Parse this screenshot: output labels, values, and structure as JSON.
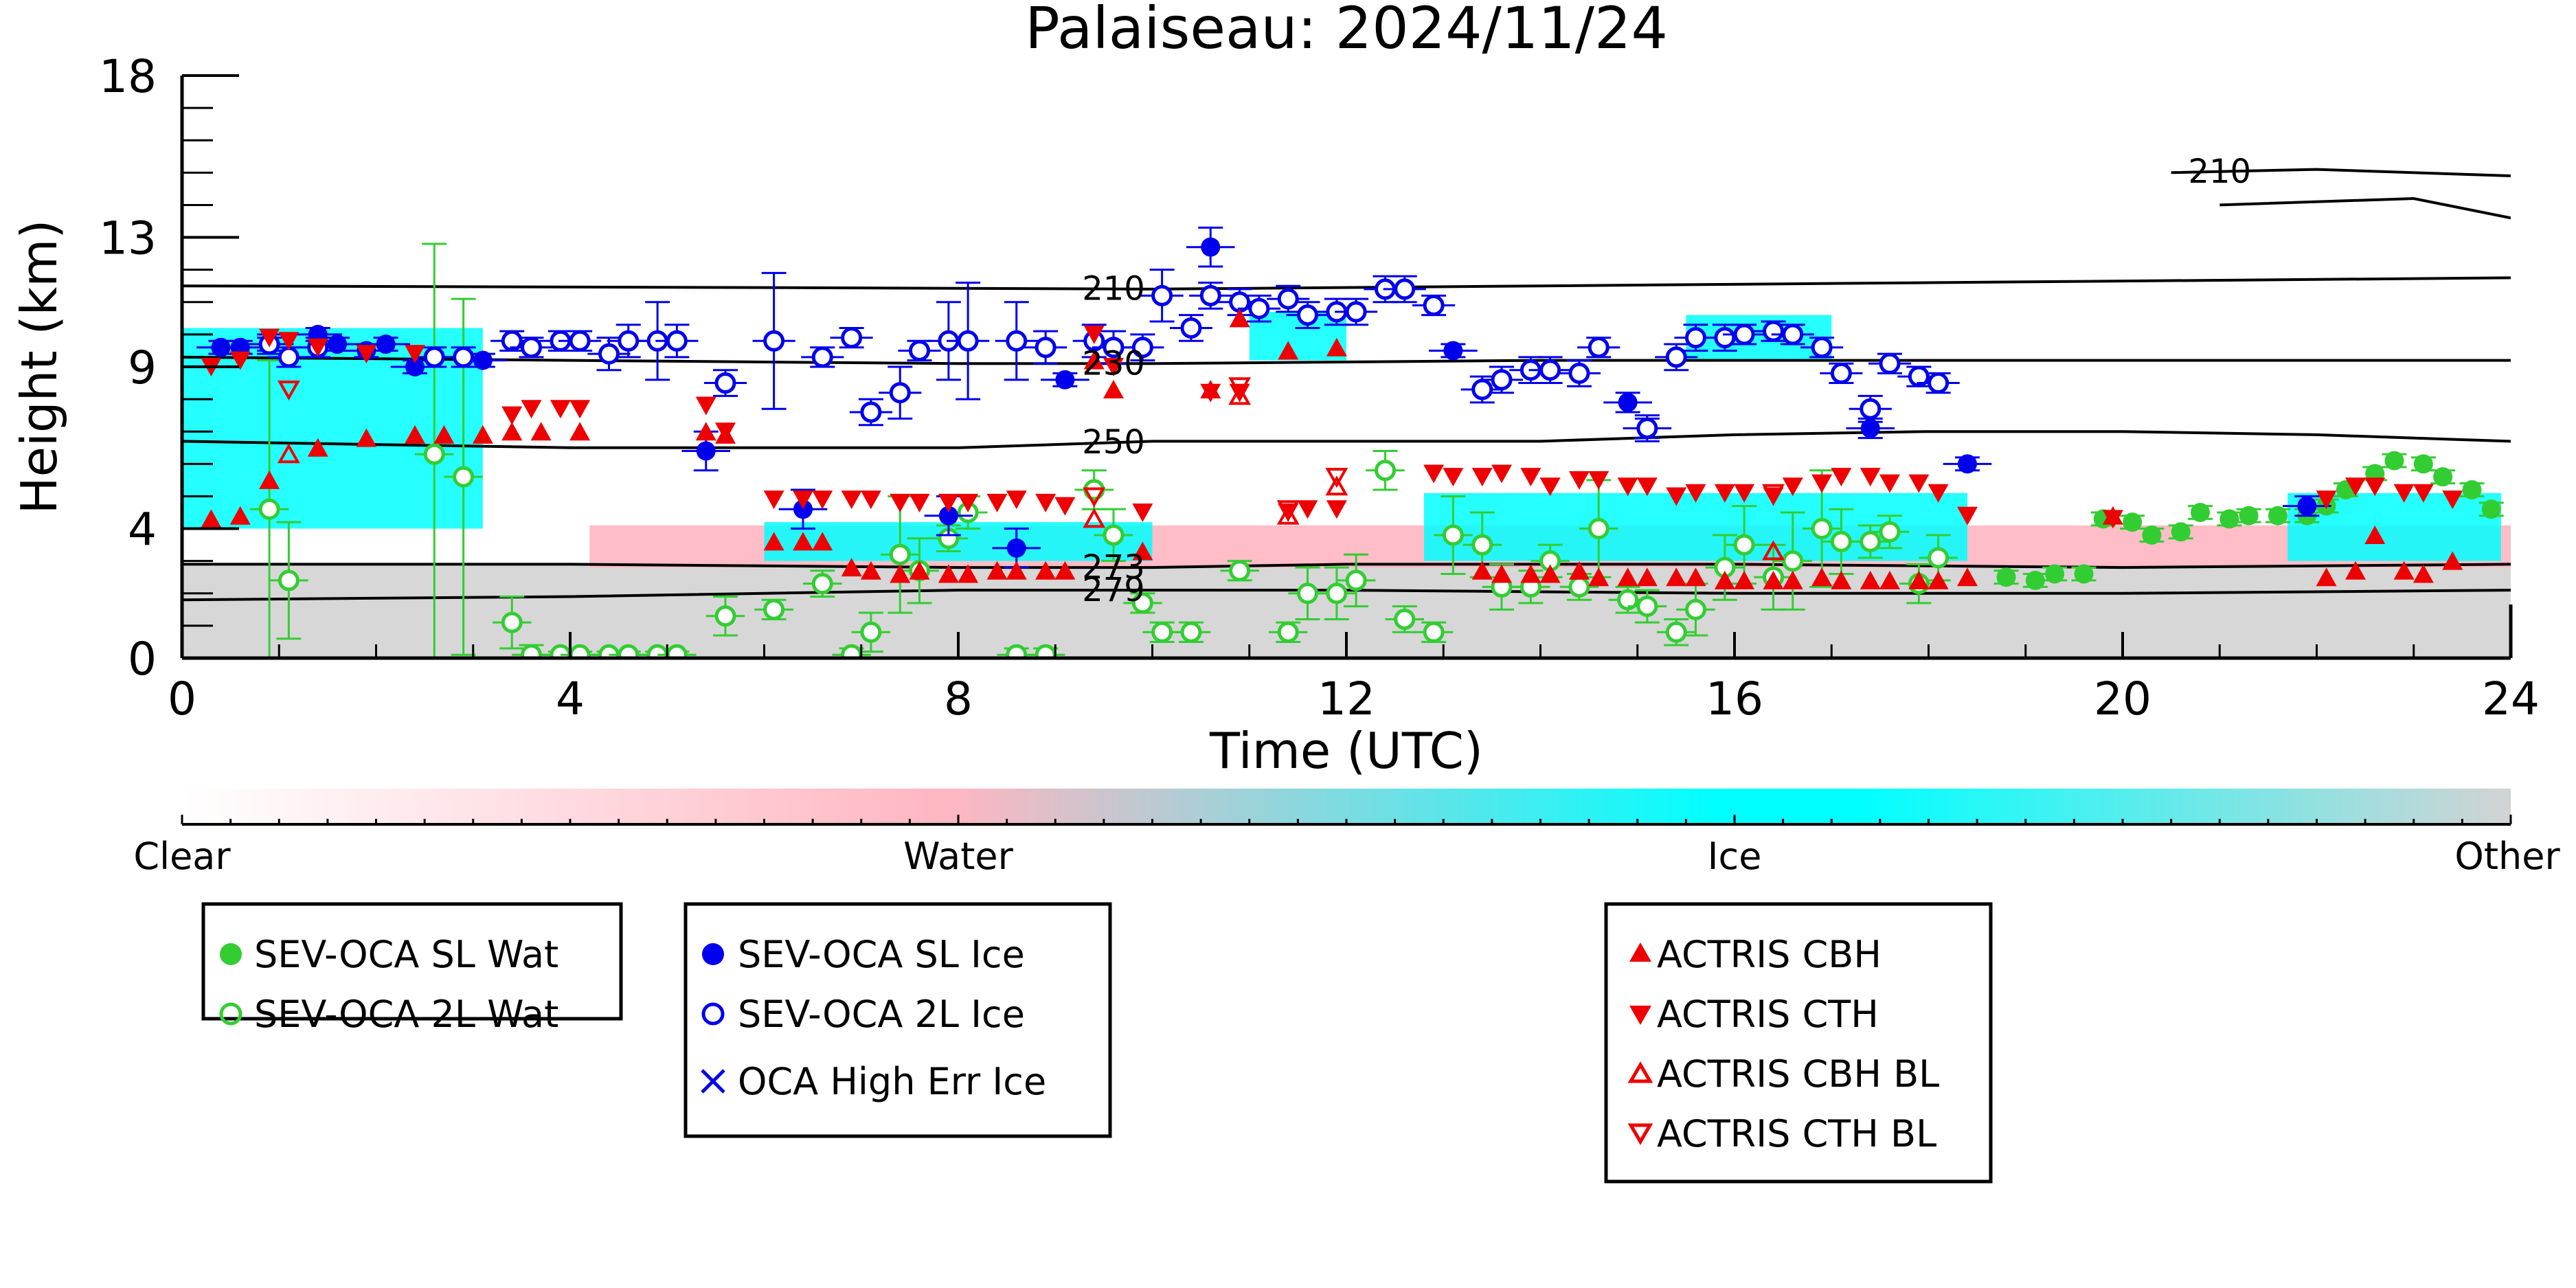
{
  "chart_data": {
    "type": "scatter",
    "title": "Palaiseau: 2024/11/24",
    "xlabel": "Time (UTC)",
    "ylabel": "Height (km)",
    "xlim": [
      0,
      24
    ],
    "ylim": [
      0,
      18
    ],
    "x_ticks": [
      0,
      4,
      8,
      12,
      16,
      20,
      24
    ],
    "x_ticklabels": [
      "0",
      "4",
      "8",
      "12",
      "16",
      "20",
      "24"
    ],
    "y_ticks": [
      0,
      4,
      9,
      13,
      18
    ],
    "y_ticklabels": [
      "0",
      "4",
      "9",
      "13",
      "18"
    ],
    "grid": false,
    "colors": {
      "water": "#ffb6c1",
      "ice": "#00ffff",
      "other": "#d3d3d3",
      "oca_wat": "#32cd32",
      "oca_ice": "#0000ee",
      "actris": "#ee0000"
    },
    "colorbar": {
      "labels": [
        "Clear",
        "Water",
        "Ice",
        "Other"
      ]
    },
    "contours": [
      {
        "label": "210",
        "label_x": 9.6,
        "points": [
          [
            0,
            11.5
          ],
          [
            6,
            11.45
          ],
          [
            10,
            11.4
          ],
          [
            14,
            11.5
          ],
          [
            18,
            11.6
          ],
          [
            22,
            11.7
          ],
          [
            24,
            11.75
          ]
        ]
      },
      {
        "label": "230",
        "label_x": 9.6,
        "points": [
          [
            0,
            9.3
          ],
          [
            4,
            9.2
          ],
          [
            8,
            9.1
          ],
          [
            10,
            9.1
          ],
          [
            14,
            9.2
          ],
          [
            18,
            9.2
          ],
          [
            22,
            9.2
          ],
          [
            24,
            9.2
          ]
        ]
      },
      {
        "label": "250",
        "label_x": 9.6,
        "points": [
          [
            0,
            6.7
          ],
          [
            4,
            6.5
          ],
          [
            8,
            6.5
          ],
          [
            10,
            6.7
          ],
          [
            14,
            6.7
          ],
          [
            16,
            6.9
          ],
          [
            18,
            7.0
          ],
          [
            20,
            7.0
          ],
          [
            22,
            6.9
          ],
          [
            24,
            6.7
          ]
        ]
      },
      {
        "label": "273",
        "label_x": 9.6,
        "points": [
          [
            0,
            2.9
          ],
          [
            4,
            2.9
          ],
          [
            8,
            2.8
          ],
          [
            10,
            2.8
          ],
          [
            12,
            2.9
          ],
          [
            16,
            2.9
          ],
          [
            20,
            2.8
          ],
          [
            24,
            2.9
          ]
        ]
      },
      {
        "label": "279",
        "label_x": 9.6,
        "points": [
          [
            0,
            1.8
          ],
          [
            4,
            1.9
          ],
          [
            8,
            2.1
          ],
          [
            10,
            2.1
          ],
          [
            12,
            2.1
          ],
          [
            16,
            2.0
          ],
          [
            20,
            2.0
          ],
          [
            24,
            2.1
          ]
        ]
      },
      {
        "label": "210",
        "label_x": 21.0,
        "points": [
          [
            20.5,
            15.0
          ],
          [
            22,
            15.1
          ],
          [
            24,
            14.9
          ]
        ]
      },
      {
        "label": "",
        "label_x": 0,
        "points": [
          [
            21.0,
            14.0
          ],
          [
            23,
            14.2
          ],
          [
            24,
            13.6
          ]
        ]
      }
    ],
    "regions": [
      {
        "class": "Other",
        "x": [
          0,
          24
        ],
        "y": [
          0,
          2.9
        ]
      },
      {
        "class": "Water",
        "x": [
          4.2,
          24
        ],
        "y": [
          2.8,
          4.1
        ]
      },
      {
        "class": "Ice",
        "x": [
          0,
          3.1
        ],
        "y": [
          4.0,
          10.2
        ]
      },
      {
        "class": "Ice",
        "x": [
          6.0,
          10.0
        ],
        "y": [
          3.0,
          4.2
        ]
      },
      {
        "class": "Ice",
        "x": [
          11.0,
          12.0
        ],
        "y": [
          9.2,
          10.7
        ]
      },
      {
        "class": "Ice",
        "x": [
          12.8,
          18.4
        ],
        "y": [
          3.0,
          5.1
        ]
      },
      {
        "class": "Ice",
        "x": [
          15.5,
          17.0
        ],
        "y": [
          9.2,
          10.6
        ]
      },
      {
        "class": "Ice",
        "x": [
          21.7,
          23.9
        ],
        "y": [
          3.0,
          5.1
        ]
      }
    ],
    "series": [
      {
        "name": "SEV-OCA SL Wat",
        "marker": "circle-filled",
        "color": "#32cd32",
        "x": [
          18.8,
          19.1,
          19.3,
          19.6,
          19.8,
          20.1,
          20.3,
          20.6,
          20.8,
          21.1,
          21.3,
          21.6,
          21.9,
          22.1,
          22.3,
          22.6,
          22.8,
          23.1,
          23.3,
          23.6,
          23.8
        ],
        "y": [
          2.5,
          2.4,
          2.6,
          2.6,
          4.3,
          4.2,
          3.8,
          3.9,
          4.5,
          4.3,
          4.4,
          4.4,
          4.4,
          4.7,
          5.2,
          5.7,
          6.1,
          6.0,
          5.6,
          5.2,
          4.6
        ],
        "yerr": [
          0.2,
          0.2,
          0.2,
          0.2,
          0.2,
          0.2,
          0.2,
          0.2,
          0.2,
          0.2,
          0.2,
          0.2,
          0.2,
          0.2,
          0.2,
          0.2,
          0.2,
          0.2,
          0.2,
          0.2,
          0.2
        ]
      },
      {
        "name": "SEV-OCA 2L Wat",
        "marker": "circle-open",
        "color": "#32cd32",
        "x": [
          0.9,
          1.1,
          2.6,
          2.9,
          3.4,
          3.6,
          3.9,
          4.1,
          4.4,
          4.6,
          4.9,
          5.1,
          5.6,
          6.1,
          6.6,
          6.9,
          7.1,
          7.4,
          7.6,
          7.9,
          8.1,
          8.6,
          8.9,
          9.4,
          9.6,
          9.9,
          10.1,
          10.4,
          10.9,
          11.4,
          11.6,
          11.9,
          12.1,
          12.4,
          12.6,
          12.9,
          13.1,
          13.4,
          13.6,
          13.9,
          14.1,
          14.4,
          14.6,
          14.9,
          15.1,
          15.4,
          15.6,
          15.9,
          16.1,
          16.4,
          16.6,
          16.9,
          17.1,
          17.4,
          17.6,
          17.9,
          18.1
        ],
        "y": [
          4.6,
          2.4,
          6.3,
          5.6,
          1.1,
          0.1,
          0.1,
          0.1,
          0.1,
          0.1,
          0.1,
          0.1,
          1.3,
          1.5,
          2.3,
          0.1,
          0.8,
          3.2,
          2.7,
          3.7,
          4.5,
          0.1,
          0.1,
          5.2,
          3.8,
          1.7,
          0.8,
          0.8,
          2.7,
          0.8,
          2.0,
          2.0,
          2.4,
          5.8,
          1.2,
          0.8,
          3.8,
          3.5,
          2.2,
          2.2,
          3.0,
          2.2,
          4.0,
          1.8,
          1.6,
          0.8,
          1.5,
          2.8,
          3.5,
          2.5,
          3.0,
          4.0,
          3.6,
          3.6,
          3.9,
          2.3,
          3.1
        ],
        "yerr": [
          4.6,
          1.8,
          6.5,
          5.5,
          0.8,
          0.3,
          0.1,
          0.1,
          0.1,
          0.1,
          0.1,
          0.1,
          0.6,
          0.3,
          0.4,
          0.2,
          0.6,
          1.8,
          1.0,
          0.4,
          0.5,
          0.2,
          0.2,
          0.6,
          0.8,
          0.3,
          0.3,
          0.3,
          0.3,
          0.3,
          0.8,
          0.8,
          0.8,
          0.6,
          0.4,
          0.3,
          1.2,
          1.0,
          0.7,
          0.5,
          0.5,
          0.4,
          1.5,
          0.4,
          0.5,
          0.4,
          0.8,
          1.0,
          1.2,
          1.0,
          1.5,
          1.8,
          1.0,
          0.5,
          0.5,
          0.6,
          0.7
        ],
        "xerr": 0.2
      },
      {
        "name": "SEV-OCA SL Ice",
        "marker": "circle-filled",
        "color": "#0000ee",
        "x": [
          0.4,
          0.6,
          0.9,
          1.4,
          1.6,
          1.9,
          2.1,
          2.4,
          3.1,
          5.4,
          6.4,
          7.9,
          8.6,
          9.1,
          10.6,
          13.1,
          14.9,
          15.1,
          17.4,
          18.4,
          21.9
        ],
        "y": [
          9.6,
          9.6,
          9.7,
          10.0,
          9.7,
          9.5,
          9.7,
          9.0,
          9.2,
          6.4,
          4.6,
          4.4,
          3.4,
          8.6,
          12.7,
          9.5,
          7.9,
          7.1,
          7.1,
          6.0,
          4.7
        ],
        "yerr": [
          0.2,
          0.2,
          0.2,
          0.2,
          0.2,
          0.2,
          0.2,
          0.2,
          0.2,
          0.6,
          0.6,
          0.6,
          0.6,
          0.2,
          0.6,
          0.2,
          0.3,
          0.3,
          0.3,
          0.2,
          0.3
        ],
        "xerr": 0.25
      },
      {
        "name": "SEV-OCA 2L Ice",
        "marker": "circle-open",
        "color": "#0000ee",
        "x": [
          0.9,
          1.1,
          1.4,
          2.6,
          2.9,
          3.4,
          3.6,
          3.9,
          4.1,
          4.4,
          4.6,
          4.9,
          5.1,
          5.6,
          6.1,
          6.6,
          6.9,
          7.1,
          7.4,
          7.6,
          7.9,
          8.1,
          8.6,
          8.9,
          9.4,
          9.6,
          9.9,
          10.1,
          10.4,
          10.6,
          10.9,
          11.1,
          11.4,
          11.6,
          11.9,
          12.1,
          12.4,
          12.6,
          12.9,
          13.4,
          13.6,
          13.9,
          14.1,
          14.4,
          14.6,
          15.1,
          15.4,
          15.6,
          15.9,
          16.1,
          16.4,
          16.6,
          16.9,
          17.1,
          17.4,
          17.6,
          17.9,
          18.1
        ],
        "y": [
          9.7,
          9.3,
          9.6,
          9.3,
          9.3,
          9.8,
          9.6,
          9.8,
          9.8,
          9.4,
          9.8,
          9.8,
          9.8,
          8.5,
          9.8,
          9.3,
          9.9,
          7.6,
          8.2,
          9.5,
          9.8,
          9.8,
          9.8,
          9.6,
          9.8,
          9.6,
          9.6,
          11.2,
          10.2,
          11.2,
          11.0,
          10.8,
          11.1,
          10.6,
          10.7,
          10.7,
          11.4,
          11.4,
          10.9,
          8.3,
          8.6,
          8.9,
          8.9,
          8.8,
          9.6,
          7.1,
          9.3,
          9.9,
          9.9,
          10.0,
          10.1,
          10.0,
          9.6,
          8.8,
          7.7,
          9.1,
          8.7,
          8.5
        ],
        "yerr": [
          0.3,
          0.3,
          0.3,
          0.3,
          0.3,
          0.3,
          0.3,
          0.3,
          0.3,
          0.5,
          0.5,
          1.2,
          0.5,
          0.4,
          2.1,
          0.3,
          0.3,
          0.4,
          0.8,
          0.3,
          1.2,
          1.8,
          1.2,
          0.5,
          0.5,
          0.5,
          0.4,
          0.8,
          0.4,
          0.4,
          0.4,
          0.4,
          0.4,
          0.4,
          0.4,
          0.4,
          0.4,
          0.4,
          0.3,
          0.4,
          0.4,
          0.4,
          0.4,
          0.4,
          0.3,
          0.4,
          0.4,
          0.4,
          0.4,
          0.3,
          0.3,
          0.3,
          0.3,
          0.3,
          0.4,
          0.3,
          0.3,
          0.3
        ],
        "xerr": 0.22
      },
      {
        "name": "OCA High Err Ice",
        "marker": "x",
        "color": "#0000ee",
        "x": [],
        "y": []
      },
      {
        "name": "ACTRIS CBH",
        "marker": "triangle-up-filled",
        "color": "#ee0000",
        "x": [
          0.3,
          0.6,
          0.9,
          1.4,
          1.9,
          2.4,
          2.7,
          3.1,
          3.4,
          3.7,
          4.1,
          5.4,
          5.6,
          6.1,
          6.4,
          6.6,
          6.9,
          7.1,
          7.4,
          7.6,
          7.9,
          8.1,
          8.4,
          8.6,
          8.9,
          9.1,
          9.4,
          9.6,
          9.9,
          10.6,
          10.9,
          11.4,
          11.9,
          13.4,
          13.6,
          13.9,
          14.1,
          14.4,
          14.6,
          14.9,
          15.1,
          15.4,
          15.6,
          15.9,
          16.1,
          16.4,
          16.6,
          16.9,
          17.1,
          17.4,
          17.6,
          17.9,
          18.1,
          18.4,
          19.9,
          22.1,
          22.4,
          22.6,
          22.9,
          23.1,
          23.4
        ],
        "y": [
          4.3,
          4.4,
          5.5,
          6.5,
          6.8,
          6.9,
          6.9,
          6.9,
          7.0,
          7.0,
          7.0,
          7.0,
          6.9,
          3.6,
          3.6,
          3.6,
          2.8,
          2.7,
          2.6,
          2.7,
          2.6,
          2.6,
          2.7,
          2.7,
          2.7,
          2.7,
          9.2,
          8.3,
          3.3,
          8.3,
          10.5,
          9.5,
          9.6,
          2.7,
          2.6,
          2.6,
          2.6,
          2.7,
          2.5,
          2.5,
          2.5,
          2.5,
          2.5,
          2.4,
          2.4,
          2.4,
          2.4,
          2.5,
          2.4,
          2.4,
          2.4,
          2.4,
          2.4,
          2.5,
          4.4,
          2.5,
          2.7,
          3.8,
          2.7,
          2.6,
          3.0
        ]
      },
      {
        "name": "ACTRIS CTH",
        "marker": "triangle-down-filled",
        "color": "#ee0000",
        "x": [
          0.3,
          0.6,
          0.9,
          1.1,
          1.4,
          1.9,
          2.4,
          3.4,
          3.6,
          3.9,
          4.1,
          5.4,
          5.6,
          6.1,
          6.4,
          6.6,
          6.9,
          7.1,
          7.4,
          7.6,
          7.9,
          8.1,
          8.4,
          8.6,
          8.9,
          9.1,
          9.4,
          9.6,
          9.9,
          10.6,
          10.9,
          11.4,
          11.6,
          11.9,
          12.9,
          13.1,
          13.4,
          13.6,
          13.9,
          14.1,
          14.4,
          14.6,
          14.9,
          15.1,
          15.4,
          15.6,
          15.9,
          16.1,
          16.4,
          16.6,
          16.9,
          17.1,
          17.4,
          17.6,
          17.9,
          18.1,
          18.4,
          19.9,
          22.1,
          22.4,
          22.6,
          22.9,
          23.1,
          23.4
        ],
        "y": [
          9.0,
          9.2,
          9.9,
          9.8,
          9.6,
          9.4,
          9.4,
          7.5,
          7.7,
          7.7,
          7.7,
          7.8,
          7.0,
          4.9,
          4.9,
          4.9,
          4.9,
          4.9,
          4.8,
          4.8,
          4.8,
          4.8,
          4.8,
          4.9,
          4.8,
          4.7,
          10.0,
          9.0,
          4.5,
          8.2,
          8.2,
          4.5,
          4.6,
          4.6,
          5.7,
          5.6,
          5.6,
          5.7,
          5.6,
          5.3,
          5.5,
          5.5,
          5.3,
          5.3,
          5.0,
          5.1,
          5.1,
          5.1,
          5.0,
          5.3,
          5.4,
          5.6,
          5.6,
          5.4,
          5.4,
          5.1,
          4.4,
          4.3,
          4.9,
          5.3,
          5.3,
          5.1,
          5.1,
          4.9
        ]
      },
      {
        "name": "ACTRIS CBH BL",
        "marker": "triangle-up-open",
        "color": "#ee0000",
        "x": [
          1.1,
          9.4,
          10.9,
          11.4,
          11.9,
          16.4
        ],
        "y": [
          6.3,
          4.3,
          8.1,
          4.4,
          5.3,
          3.3
        ]
      },
      {
        "name": "ACTRIS CTH BL",
        "marker": "triangle-down-open",
        "color": "#ee0000",
        "x": [
          1.1,
          9.4,
          10.9,
          11.4,
          11.9,
          16.4
        ],
        "y": [
          8.3,
          5.0,
          8.4,
          4.6,
          5.6,
          5.1
        ]
      }
    ]
  }
}
